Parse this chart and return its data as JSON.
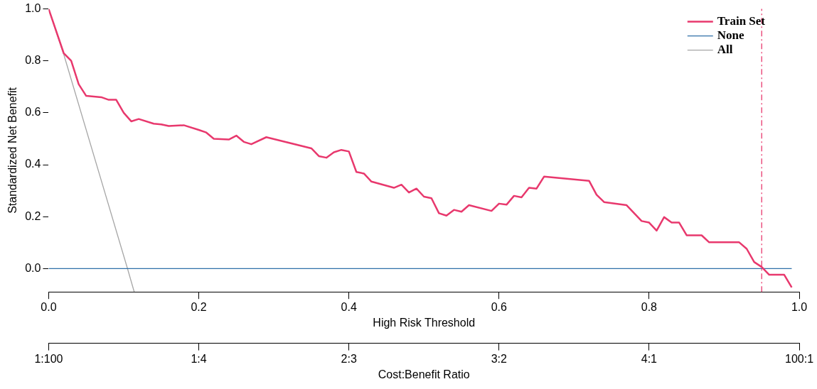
{
  "chart_data": {
    "type": "line",
    "xlabel": "High Risk Threshold",
    "ylabel": "Standardized Net Benefit",
    "x2label": "Cost:Benefit Ratio",
    "xlim": [
      0,
      1
    ],
    "xticks": [
      {
        "value": 0,
        "label": "0.0"
      },
      0.2,
      0.4,
      0.6,
      0.8,
      {
        "value": 1,
        "label": "1.0"
      }
    ],
    "annotations": [
      "1:100",
      "1:4",
      "2:3",
      "3:2",
      "4:1",
      "100:1"
    ],
    "ylim": [
      -0.09,
      1
    ],
    "yticks": [
      {
        "value": 0,
        "label": "0.0"
      },
      0.2,
      0.4,
      0.6,
      0.8,
      {
        "value": 1,
        "label": "1.0"
      }
    ],
    "grid": false,
    "legend": "top right",
    "marker": "none",
    "line_style": "solid",
    "series": [
      {
        "name": "Train Set",
        "color": "#e8386d",
        "x": [
          0,
          0.02,
          0.03,
          0.04,
          0.05,
          0.07,
          0.08,
          0.09,
          0.1,
          0.11,
          0.12,
          0.14,
          0.15,
          0.16,
          0.18,
          0.2,
          0.21,
          0.22,
          0.24,
          0.25,
          0.26,
          0.27,
          0.29,
          0.35,
          0.36,
          0.37,
          0.38,
          0.39,
          0.4,
          0.41,
          0.42,
          0.43,
          0.46,
          0.47,
          0.48,
          0.49,
          0.5,
          0.51,
          0.52,
          0.53,
          0.54,
          0.55,
          0.56,
          0.59,
          0.6,
          0.61,
          0.62,
          0.63,
          0.64,
          0.65,
          0.66,
          0.72,
          0.73,
          0.74,
          0.77,
          0.79,
          0.8,
          0.81,
          0.82,
          0.83,
          0.84,
          0.85,
          0.87,
          0.88,
          0.92,
          0.93,
          0.94,
          0.95,
          0.96,
          0.98,
          0.99
        ],
        "values": [
          1.0,
          0.83,
          0.8,
          0.71,
          0.665,
          0.66,
          0.65,
          0.65,
          0.6,
          0.567,
          0.576,
          0.558,
          0.555,
          0.549,
          0.552,
          0.534,
          0.524,
          0.5,
          0.497,
          0.512,
          0.488,
          0.479,
          0.506,
          0.463,
          0.433,
          0.427,
          0.448,
          0.457,
          0.451,
          0.372,
          0.366,
          0.335,
          0.311,
          0.323,
          0.293,
          0.308,
          0.277,
          0.271,
          0.213,
          0.204,
          0.226,
          0.219,
          0.244,
          0.222,
          0.25,
          0.246,
          0.28,
          0.274,
          0.311,
          0.308,
          0.354,
          0.338,
          0.284,
          0.256,
          0.244,
          0.183,
          0.177,
          0.146,
          0.198,
          0.177,
          0.177,
          0.128,
          0.128,
          0.101,
          0.101,
          0.076,
          0.025,
          0.006,
          -0.024,
          -0.024,
          -0.073
        ]
      },
      {
        "name": "None",
        "color": "#2f6fa8",
        "x": [
          0,
          0.99
        ],
        "values": [
          0,
          0
        ]
      },
      {
        "name": "All",
        "color": "#a6a6a6",
        "x": [
          0,
          0.02,
          0.105,
          0.114
        ],
        "values": [
          1.0,
          0.826,
          0,
          -0.09
        ]
      }
    ],
    "ref_lines": [
      {
        "axis": "x",
        "value": 0.95,
        "color": "#e8386d",
        "line_style": "dashed"
      }
    ]
  }
}
